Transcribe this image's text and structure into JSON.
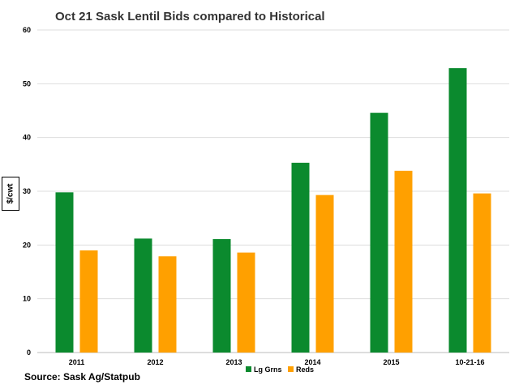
{
  "chart_data": {
    "type": "bar",
    "title": "Oct 21 Sask Lentil Bids compared to Historical",
    "ylabel": "$/cwt",
    "xlabel": "",
    "categories": [
      "2011",
      "2012",
      "2013",
      "2014",
      "2015",
      "10-21-16"
    ],
    "series": [
      {
        "name": "Lg Grns",
        "color": "#0b8a2e",
        "values": [
          29.8,
          21.2,
          21.1,
          35.3,
          44.6,
          52.9
        ]
      },
      {
        "name": "Reds",
        "color": "#ffa000",
        "values": [
          19.0,
          17.9,
          18.6,
          29.3,
          33.8,
          29.6
        ]
      }
    ],
    "ylim": [
      0,
      60
    ],
    "yticks": [
      0,
      10,
      20,
      30,
      40,
      50,
      60
    ],
    "grid": true,
    "legend_position": "bottom"
  },
  "source": "Source: Sask Ag/Statpub"
}
